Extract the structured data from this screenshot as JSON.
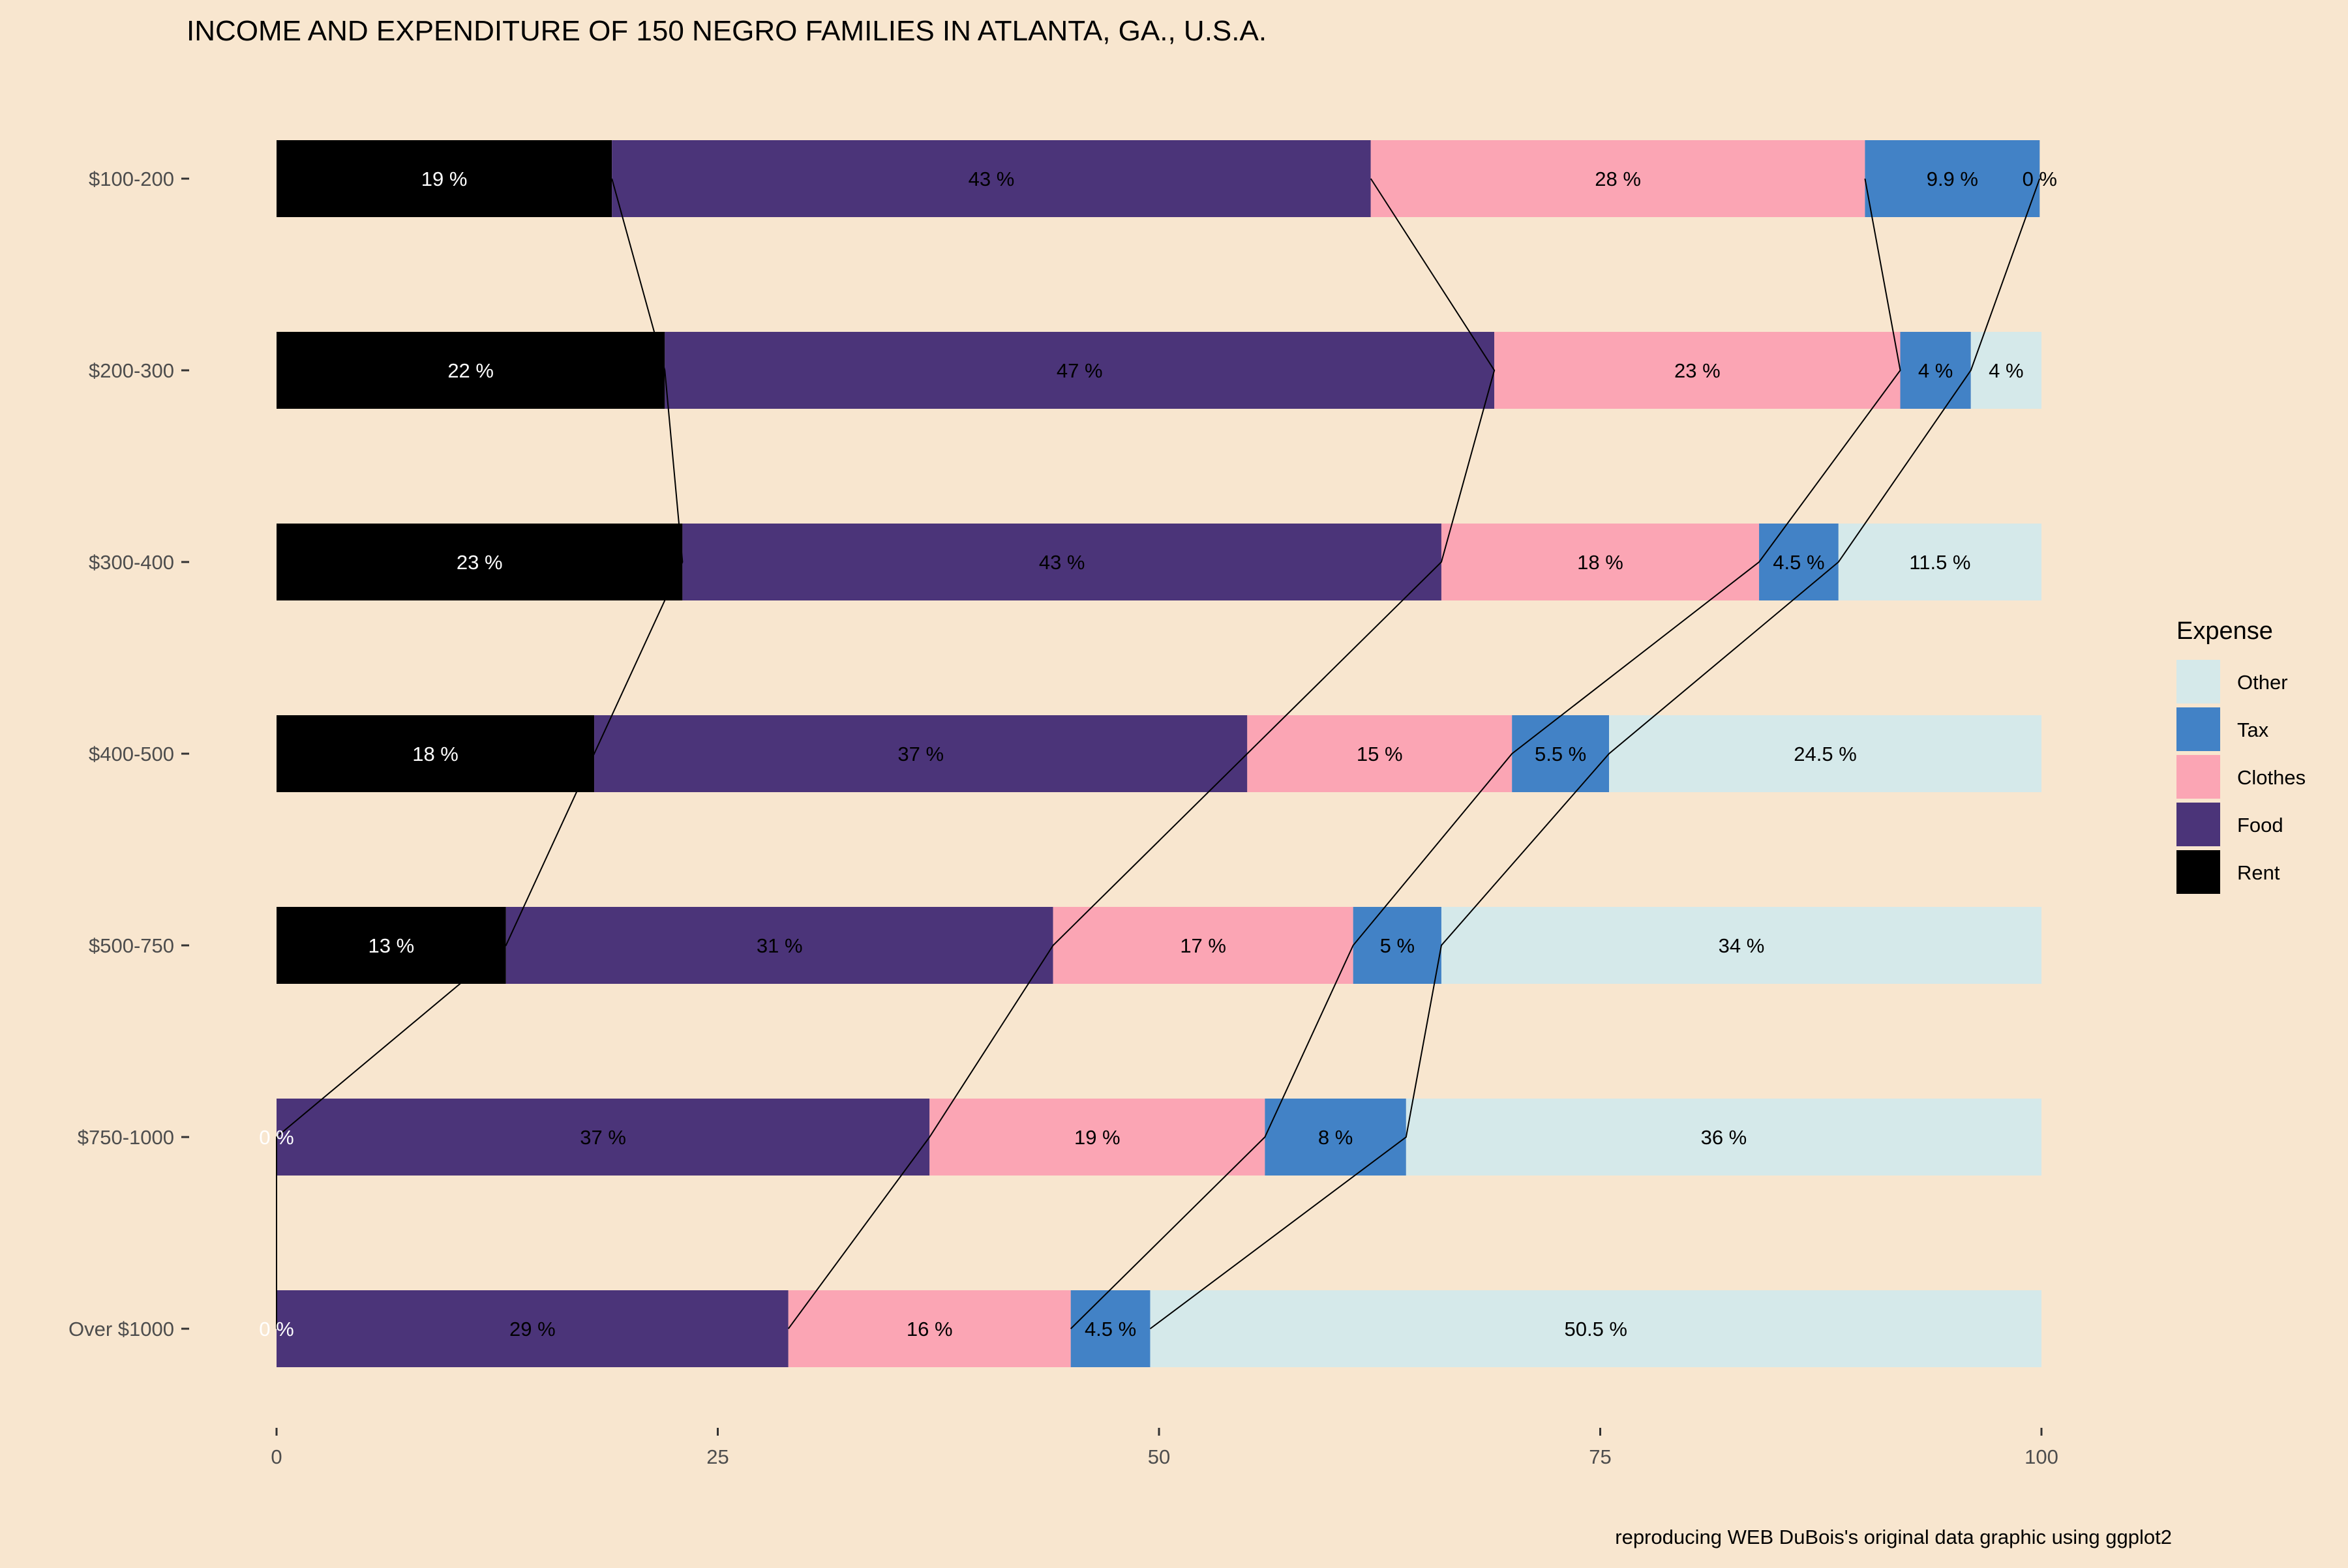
{
  "chart_data": {
    "type": "bar",
    "orientation": "horizontal",
    "stacked": true,
    "title": "INCOME AND EXPENDITURE OF 150 NEGRO FAMILIES IN ATLANTA, GA., U.S.A.",
    "caption": "reproducing WEB DuBois's original data graphic using ggplot2",
    "xlabel": "",
    "ylabel": "",
    "xlim": [
      0,
      100
    ],
    "x_ticks": [
      0,
      25,
      50,
      75,
      100
    ],
    "x_tick_labels": [
      "0",
      "25",
      "50",
      "75",
      "100"
    ],
    "grid": false,
    "background": "#f8e6cf",
    "legend": {
      "title": "Expense",
      "placement": "right",
      "entries": [
        "Other",
        "Tax",
        "Clothes",
        "Food",
        "Rent"
      ]
    },
    "categories": [
      "$100-200",
      "$200-300",
      "$300-400",
      "$400-500",
      "$500-750",
      "$750-1000",
      "Over $1000"
    ],
    "series": [
      {
        "name": "Rent",
        "color": "#000000",
        "label_color": "#ffffff",
        "values": [
          19,
          22,
          23,
          18,
          13,
          0,
          0
        ],
        "labels": [
          "19 %",
          "22 %",
          "23 %",
          "18 %",
          "13 %",
          "0 %",
          "0 %"
        ]
      },
      {
        "name": "Food",
        "color": "#4b3479",
        "label_color": "#000000",
        "values": [
          43,
          47,
          43,
          37,
          31,
          37,
          29
        ],
        "labels": [
          "43 %",
          "47 %",
          "43 %",
          "37 %",
          "31 %",
          "37 %",
          "29 %"
        ]
      },
      {
        "name": "Clothes",
        "color": "#fba5b4",
        "label_color": "#000000",
        "values": [
          28,
          23,
          18,
          15,
          17,
          19,
          16
        ],
        "labels": [
          "28 %",
          "23 %",
          "18 %",
          "15 %",
          "17 %",
          "19 %",
          "16 %"
        ]
      },
      {
        "name": "Tax",
        "color": "#4282c6",
        "label_color": "#000000",
        "values": [
          9.9,
          4,
          4.5,
          5.5,
          5,
          8,
          4.5
        ],
        "labels": [
          "9.9 %",
          "4 %",
          "4.5 %",
          "5.5 %",
          "5 %",
          "8 %",
          "4.5 %"
        ]
      },
      {
        "name": "Other",
        "color": "#d5e9ea",
        "label_color": "#000000",
        "values": [
          0,
          4,
          11.5,
          24.5,
          34,
          36,
          50.5
        ],
        "labels": [
          "0 %",
          "4 %",
          "11.5 %",
          "24.5 %",
          "34 %",
          "36 %",
          "50.5 %"
        ]
      }
    ],
    "connector_lines": true
  }
}
